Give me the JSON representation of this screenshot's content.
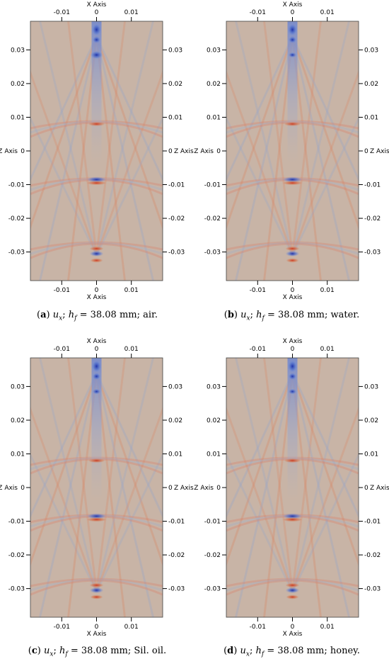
{
  "panels": [
    {
      "id": "a",
      "letter": "a",
      "medium": "air",
      "pre_u": "u",
      "sub_u": "x",
      "pre_h": "h",
      "sub_h": "f",
      "value": "= 38.08 mm;"
    },
    {
      "id": "b",
      "letter": "b",
      "medium": "water",
      "pre_u": "u",
      "sub_u": "x",
      "pre_h": "h",
      "sub_h": "f",
      "value": "= 38.08 mm;"
    },
    {
      "id": "c",
      "letter": "c",
      "medium": "Sil. oil",
      "pre_u": "u",
      "sub_u": "x",
      "pre_h": "h",
      "sub_h": "f",
      "value": "= 38.08 mm;"
    },
    {
      "id": "d",
      "letter": "d",
      "medium": "honey",
      "pre_u": "u",
      "sub_u": "x",
      "pre_h": "h",
      "sub_h": "f",
      "value": "= 38.08 mm;"
    }
  ],
  "axes": {
    "x_label": "X Axis",
    "z_label": "Z Axis",
    "x_ticks": [
      -0.01,
      0,
      0.01
    ],
    "x_tick_labels": [
      "-0.01",
      "0",
      "0.01"
    ],
    "z_ticks": [
      0.03,
      0.02,
      0.01,
      0,
      -0.01,
      -0.02,
      -0.03
    ],
    "z_tick_labels": [
      "0.03",
      "0.02",
      "0.01",
      "0",
      "-0.01",
      "-0.02",
      "-0.03"
    ],
    "x_range": [
      -0.019,
      0.019
    ],
    "z_range": [
      -0.0385,
      0.0385
    ]
  },
  "colors": {
    "background_field": "#c8b4a6",
    "positive": "#d4451f",
    "negative": "#2d4fc2",
    "frame": "#404040"
  }
}
